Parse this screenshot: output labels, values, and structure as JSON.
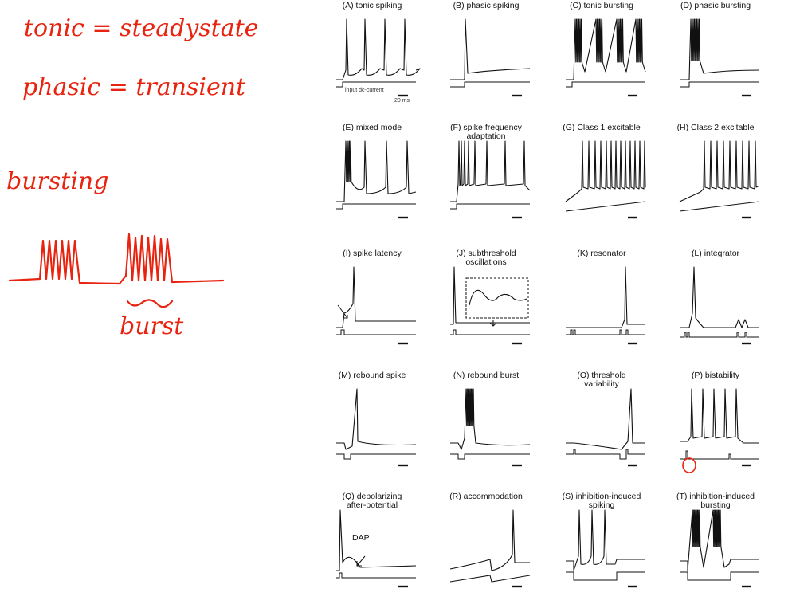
{
  "notes": {
    "line1": "tonic = steadystate",
    "line2": "phasic = transient",
    "line3": "bursting",
    "line4": "burst"
  },
  "figure": {
    "input_label": "input dc-current",
    "scale_label": "20 ms",
    "dap_label": "DAP",
    "panels": [
      {
        "id": "A",
        "title": "(A) tonic spiking"
      },
      {
        "id": "B",
        "title": "(B) phasic spiking"
      },
      {
        "id": "C",
        "title": "(C) tonic bursting"
      },
      {
        "id": "D",
        "title": "(D) phasic bursting"
      },
      {
        "id": "E",
        "title": "(E) mixed mode"
      },
      {
        "id": "F",
        "title": "(F) spike frequency\nadaptation"
      },
      {
        "id": "G",
        "title": "(G) Class 1 excitable"
      },
      {
        "id": "H",
        "title": "(H) Class 2 excitable"
      },
      {
        "id": "I",
        "title": "(I) spike latency"
      },
      {
        "id": "J",
        "title": "(J) subthreshold\noscillations"
      },
      {
        "id": "K",
        "title": "(K) resonator"
      },
      {
        "id": "L",
        "title": "(L) integrator"
      },
      {
        "id": "M",
        "title": "(M) rebound spike"
      },
      {
        "id": "N",
        "title": "(N) rebound burst"
      },
      {
        "id": "O",
        "title": "(O) threshold\nvariability"
      },
      {
        "id": "P",
        "title": "(P) bistability"
      },
      {
        "id": "Q",
        "title": "(Q) depolarizing\nafter-potential"
      },
      {
        "id": "R",
        "title": "(R) accommodation"
      },
      {
        "id": "S",
        "title": "(S) inhibition-induced\nspiking"
      },
      {
        "id": "T",
        "title": "(T) inhibition-induced\nbursting"
      }
    ]
  },
  "colors": {
    "ink": "#e8230f",
    "trace": "#111111"
  }
}
